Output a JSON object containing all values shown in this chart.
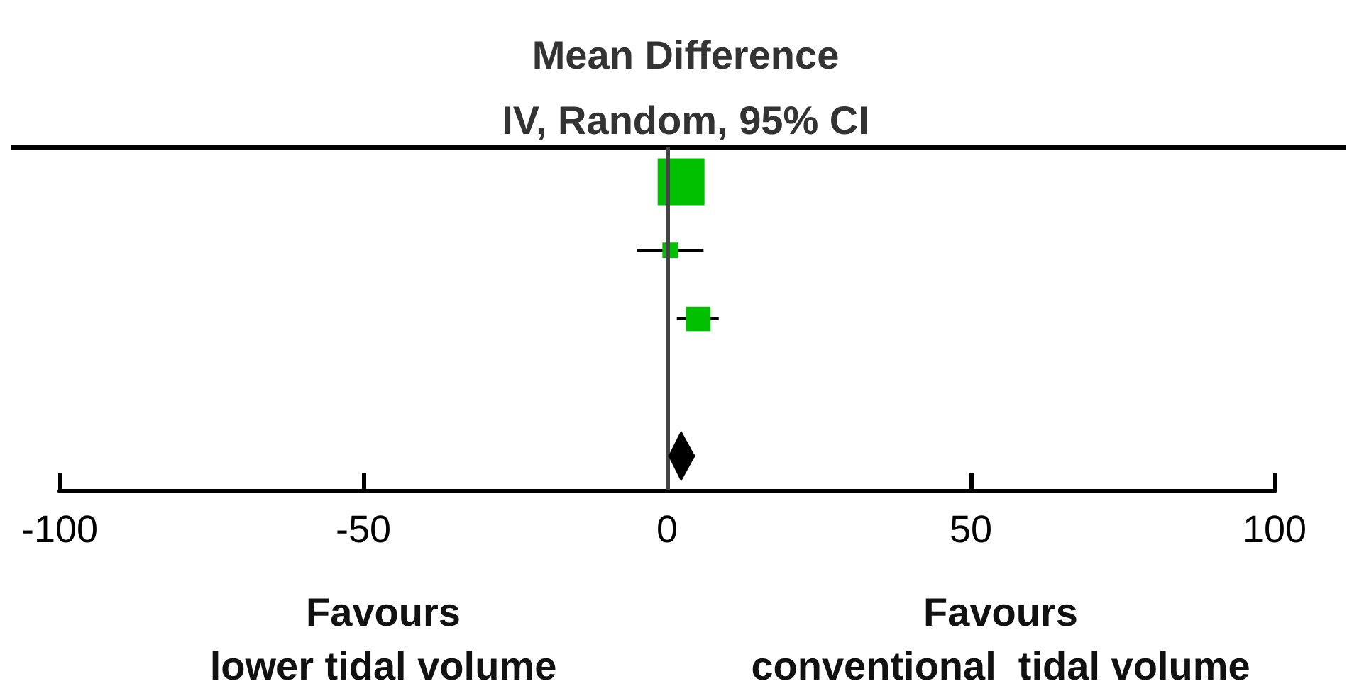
{
  "chart_data": {
    "type": "bubble",
    "orientation": "horizontal",
    "title": "Mean Difference",
    "subtitle": "IV, Random, 95% CI",
    "categories": [
      null,
      null,
      null,
      null,
      null
    ],
    "series": [
      {
        "color": "#00c000",
        "marker": "square",
        "values": [
          2.3,
          0.5,
          5.1,
          null,
          null
        ],
        "sizes": [
          1,
          0.11,
          0.27,
          null,
          null
        ],
        "errors": [
          null,
          [
            -5,
            6
          ],
          [
            1.6,
            8.5
          ],
          null,
          null
        ]
      },
      {
        "type": "scatter",
        "color": "#000000",
        "marker": "diamond",
        "values": [
          null,
          null,
          null,
          null,
          2.3
        ],
        "errors": [
          null,
          null,
          null,
          null,
          [
            0.2,
            4.6
          ]
        ]
      }
    ],
    "xlim": [
      -100,
      100
    ],
    "xticks": [
      -100,
      -50,
      0,
      50,
      100
    ],
    "tick_labels": "x",
    "grid": false,
    "ref_lines": [
      {
        "axis": "x",
        "value": 0,
        "color": "#444444"
      }
    ],
    "annotations": [
      "Favours\nlower tidal volume",
      "Favours\nconventional  tidal volume"
    ]
  }
}
